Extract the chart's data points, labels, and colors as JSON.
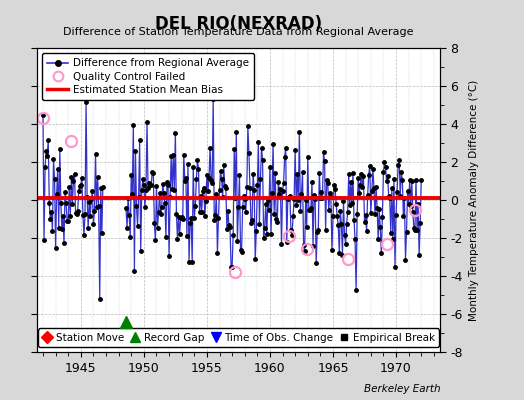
{
  "title": "DEL RIO(NEXRAD)",
  "subtitle": "Difference of Station Temperature Data from Regional Average",
  "ylabel": "Monthly Temperature Anomaly Difference (°C)",
  "berkeley_earth": "Berkeley Earth",
  "xlim": [
    1941.5,
    1973.5
  ],
  "ylim": [
    -8,
    8
  ],
  "yticks": [
    -8,
    -6,
    -4,
    -2,
    0,
    2,
    4,
    6,
    8
  ],
  "xticks": [
    1945,
    1950,
    1955,
    1960,
    1965,
    1970
  ],
  "bias_level": 0.1,
  "bg_color": "#d8d8d8",
  "plot_bg": "#ffffff",
  "line_color": "#3333cc",
  "bias_color": "#ee0000",
  "qc_color": "#ff99cc",
  "seed": 17,
  "gap_start": 1946.75,
  "gap_end": 1948.5,
  "gap_marker_x": 1948.6,
  "gap_marker_y": -6.4,
  "qc_times": [
    1942.0,
    1944.25,
    1957.2,
    1961.5,
    1962.9,
    1966.2,
    1969.3,
    1971.5
  ],
  "qc_values": [
    4.3,
    3.1,
    -3.8,
    -1.9,
    -2.6,
    -3.1,
    -2.3,
    -0.5
  ]
}
